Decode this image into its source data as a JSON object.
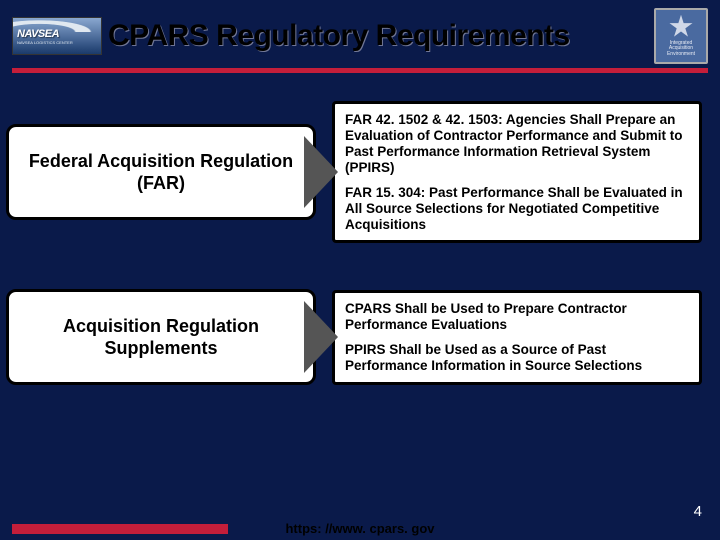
{
  "header": {
    "navsea_label": "NAVSEA",
    "navsea_subtitle": "NAVSEA LOGISTICS CENTER",
    "title": "CPARS Regulatory Requirements",
    "iae_text": "Integrated Acquisition Environment"
  },
  "rows": [
    {
      "left": "Federal Acquisition Regulation (FAR)",
      "right_paras": [
        "FAR 42. 1502 & 42. 1503:  Agencies Shall Prepare an Evaluation of Contractor Performance and Submit to Past Performance Information Retrieval System (PPIRS)",
        "FAR 15. 304:  Past Performance Shall be Evaluated in All Source Selections for Negotiated Competitive Acquisitions"
      ]
    },
    {
      "left": "Acquisition Regulation Supplements",
      "right_paras": [
        "CPARS Shall be Used to Prepare Contractor Performance Evaluations",
        "PPIRS Shall be Used as a Source of Past Performance Information in Source Selections"
      ]
    }
  ],
  "footer": {
    "url": "https: //www. cpars. gov",
    "slide_number": "4"
  },
  "colors": {
    "background": "#0a1a4a",
    "accent_red": "#c41e3a",
    "box_bg": "#ffffff",
    "box_border": "#000000",
    "arrow": "#555555"
  }
}
